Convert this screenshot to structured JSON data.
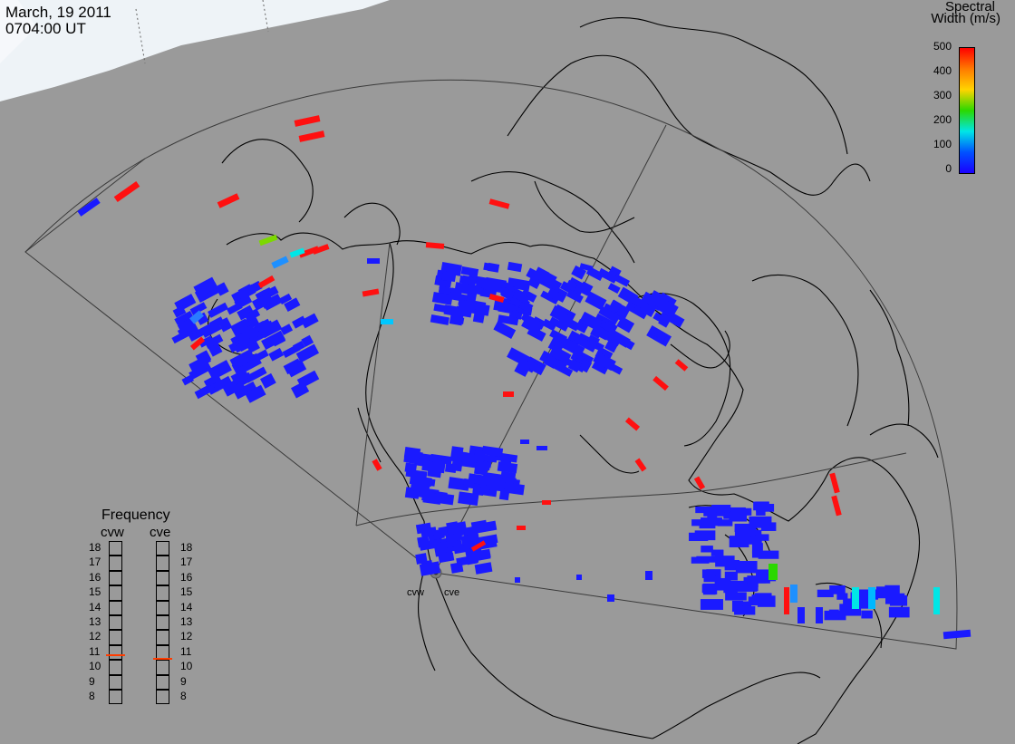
{
  "header": {
    "date": "March, 19 2011",
    "time": "0704:00 UT"
  },
  "colorbar": {
    "title_line1": "Spectral",
    "title_line2": "Width (m/s)",
    "ticks": [
      "500",
      "400",
      "300",
      "200",
      "100",
      "0"
    ],
    "colors": [
      "#ff0000",
      "#ff7a00",
      "#ffd400",
      "#2bd800",
      "#00e6e6",
      "#0052ff",
      "#1a00ff"
    ]
  },
  "frequency": {
    "title": "Frequency",
    "radars": [
      {
        "name": "cvw",
        "value": 10.8
      },
      {
        "name": "cve",
        "value": 10.6
      }
    ],
    "ticks": [
      "18",
      "17",
      "16",
      "15",
      "14",
      "13",
      "12",
      "11",
      "10",
      "9",
      "8"
    ],
    "marker_color": "#ff3c00"
  },
  "sites": [
    {
      "name": "cvw"
    },
    {
      "name": "cve"
    }
  ],
  "colors": {
    "background": "#9a9a9a",
    "land": "#9a9a9a",
    "coast": "#000000",
    "fov": "#3a3a3a",
    "low_width": "#1a1aff",
    "high_width": "#ff1010"
  }
}
